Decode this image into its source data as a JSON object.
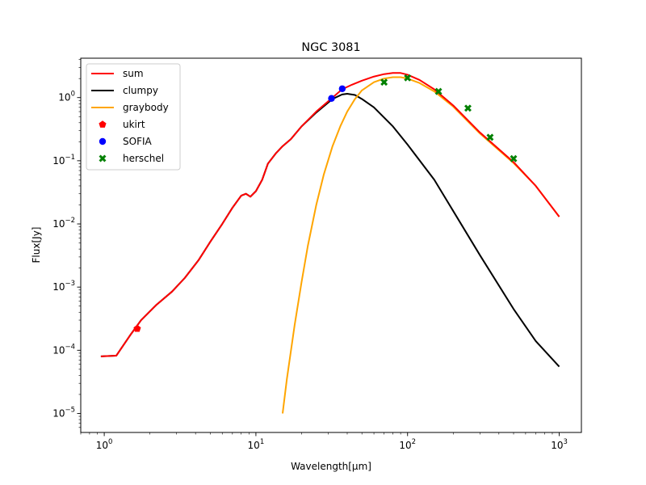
{
  "chart_data": {
    "type": "line",
    "title": "NGC 3081",
    "xlabel": "Wavelength[μm]",
    "ylabel": "Flux[Jy]",
    "xscale": "log",
    "yscale": "log",
    "xlim": [
      0.7,
      1400
    ],
    "ylim": [
      5e-06,
      4.2
    ],
    "x_ticks": [
      {
        "value": 1,
        "base": "10",
        "exp": "0"
      },
      {
        "value": 10,
        "base": "10",
        "exp": "1"
      },
      {
        "value": 100,
        "base": "10",
        "exp": "2"
      },
      {
        "value": 1000,
        "base": "10",
        "exp": "3"
      }
    ],
    "y_ticks": [
      {
        "value": 1e-05,
        "base": "10",
        "exp": "−5"
      },
      {
        "value": 0.0001,
        "base": "10",
        "exp": "−4"
      },
      {
        "value": 0.001,
        "base": "10",
        "exp": "−3"
      },
      {
        "value": 0.01,
        "base": "10",
        "exp": "−2"
      },
      {
        "value": 0.1,
        "base": "10",
        "exp": "−1"
      },
      {
        "value": 1,
        "base": "10",
        "exp": "0"
      }
    ],
    "grid": false,
    "legend_position": "top-left",
    "series": [
      {
        "name": "sum",
        "kind": "line",
        "color": "#ff0000",
        "x": [
          0.95,
          1.2,
          1.5,
          1.75,
          2.2,
          2.8,
          3.4,
          4.2,
          5.0,
          6.0,
          7.0,
          8.0,
          8.6,
          9.2,
          10.0,
          11.0,
          12.0,
          13.5,
          15.0,
          17.0,
          20.0,
          25.0,
          32.0,
          37.0,
          43.0,
          50.0,
          60.0,
          70.0,
          80.0,
          90.0,
          100.0,
          120.0,
          150.0,
          200.0,
          300.0,
          500.0,
          700.0,
          1000.0
        ],
        "y": [
          8e-05,
          8.2e-05,
          0.00018,
          0.0003,
          0.00052,
          0.00085,
          0.0014,
          0.0027,
          0.0052,
          0.01,
          0.018,
          0.028,
          0.03,
          0.027,
          0.033,
          0.05,
          0.09,
          0.13,
          0.17,
          0.22,
          0.35,
          0.6,
          1.0,
          1.35,
          1.6,
          1.85,
          2.15,
          2.35,
          2.45,
          2.45,
          2.3,
          1.9,
          1.35,
          0.75,
          0.28,
          0.095,
          0.04,
          0.013
        ]
      },
      {
        "name": "clumpy",
        "kind": "line",
        "color": "#000000",
        "x": [
          0.95,
          1.2,
          1.5,
          1.75,
          2.2,
          2.8,
          3.4,
          4.2,
          5.0,
          6.0,
          7.0,
          8.0,
          8.6,
          9.2,
          10.0,
          11.0,
          12.0,
          13.5,
          15.0,
          17.0,
          20.0,
          25.0,
          32.0,
          37.0,
          40.0,
          45.0,
          50.0,
          60.0,
          80.0,
          100.0,
          150.0,
          200.0,
          300.0,
          500.0,
          700.0,
          1000.0
        ],
        "y": [
          8e-05,
          8.2e-05,
          0.00018,
          0.0003,
          0.00052,
          0.00085,
          0.0014,
          0.0027,
          0.0052,
          0.01,
          0.018,
          0.028,
          0.03,
          0.027,
          0.033,
          0.05,
          0.09,
          0.13,
          0.17,
          0.22,
          0.35,
          0.58,
          0.95,
          1.12,
          1.15,
          1.1,
          0.95,
          0.7,
          0.35,
          0.18,
          0.05,
          0.016,
          0.0032,
          0.00045,
          0.00014,
          5.5e-05
        ]
      },
      {
        "name": "graybody",
        "kind": "line",
        "color": "#ffa500",
        "x": [
          15.0,
          16.0,
          18.0,
          20.0,
          22.0,
          25.0,
          28.0,
          32.0,
          36.0,
          40.0,
          45.0,
          50.0,
          60.0,
          70.0,
          80.0,
          90.0,
          100.0,
          120.0,
          150.0,
          200.0,
          300.0,
          500.0,
          700.0,
          1000.0
        ],
        "y": [
          1e-05,
          3.5e-05,
          0.00025,
          0.0012,
          0.0045,
          0.02,
          0.06,
          0.17,
          0.35,
          0.6,
          0.95,
          1.3,
          1.75,
          2.0,
          2.1,
          2.1,
          2.0,
          1.7,
          1.25,
          0.72,
          0.27,
          0.092,
          0.04,
          0.013
        ]
      },
      {
        "name": "ukirt",
        "kind": "scatter",
        "marker": "pentagon",
        "color": "#ff0000",
        "x": [
          1.65
        ],
        "y": [
          0.00022
        ]
      },
      {
        "name": "SOFIA",
        "kind": "scatter",
        "marker": "circle",
        "color": "#0000ff",
        "x": [
          31.5,
          37.1
        ],
        "y": [
          0.97,
          1.38
        ]
      },
      {
        "name": "herschel",
        "kind": "scatter",
        "marker": "x",
        "color": "#008000",
        "x": [
          70,
          100,
          160,
          250,
          350,
          500
        ],
        "y": [
          1.75,
          2.05,
          1.25,
          0.68,
          0.235,
          0.108
        ]
      }
    ]
  }
}
